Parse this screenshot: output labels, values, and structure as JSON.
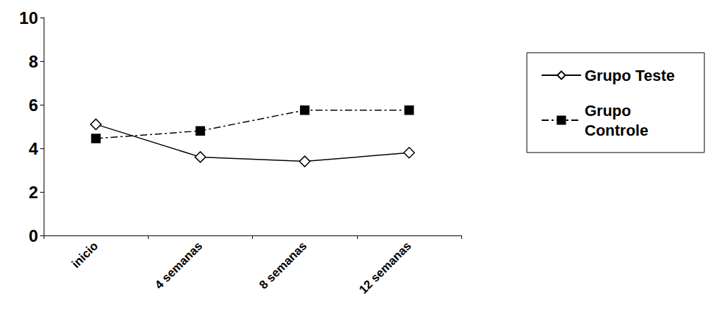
{
  "chart_data": {
    "type": "line",
    "categories": [
      "inicio",
      "4 semanas",
      "8 semanas",
      "12 semanas"
    ],
    "series": [
      {
        "name": "Grupo Teste",
        "color": "#000000",
        "marker": "diamond_open",
        "line_style": "solid",
        "values": [
          5.1,
          3.6,
          3.4,
          3.8
        ]
      },
      {
        "name": "Grupo Controle",
        "color": "#000000",
        "marker": "square",
        "line_style": "dashdot",
        "values": [
          4.45,
          4.8,
          5.75,
          5.75
        ]
      }
    ],
    "ylim": [
      0,
      10
    ],
    "yticks": [
      0,
      2,
      4,
      6,
      8,
      10
    ],
    "grid": false,
    "legend": "right"
  }
}
